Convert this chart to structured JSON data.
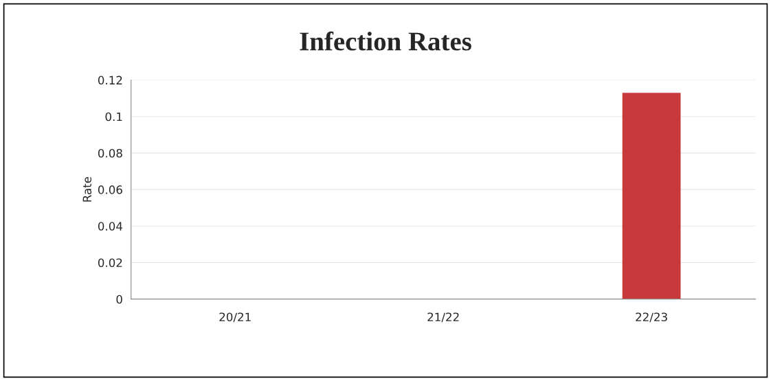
{
  "chart_data": {
    "type": "bar",
    "title": "Infection Rates",
    "ylabel": "Rate",
    "categories": [
      "20/21",
      "21/22",
      "22/23"
    ],
    "values": [
      0,
      0,
      0.113
    ],
    "color": "#c8393b",
    "ylim": [
      0,
      0.12
    ],
    "yticks": [
      {
        "value": 0,
        "label": "0"
      },
      0.02,
      0.04,
      0.06,
      0.08,
      {
        "value": 0.1,
        "label": "0.1"
      },
      0.12
    ],
    "grid": "y",
    "legend": false
  }
}
